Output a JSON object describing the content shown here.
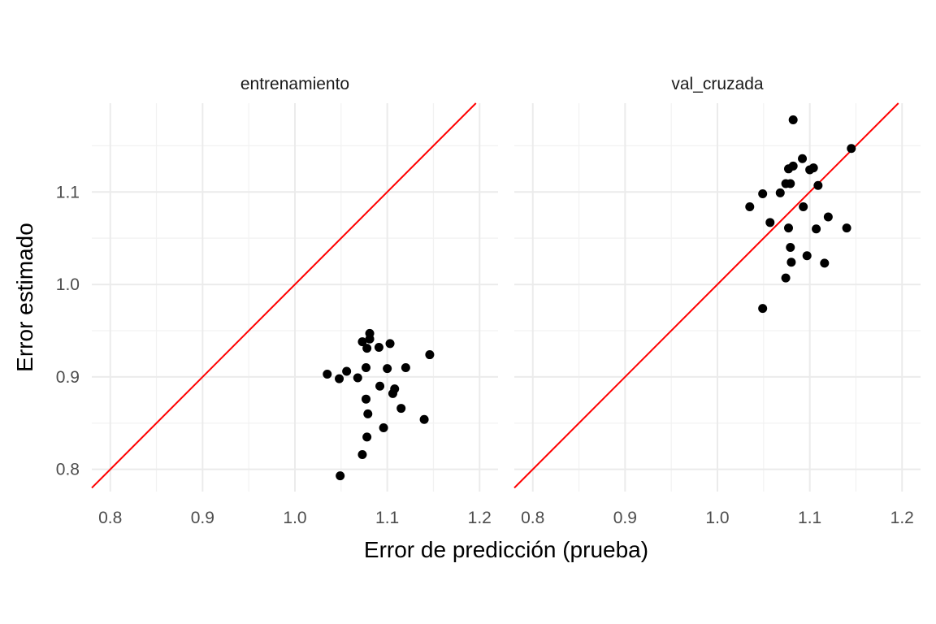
{
  "chart_data": {
    "type": "scatter",
    "xlabel": "Error de predicción (prueba)",
    "ylabel": "Error estimado",
    "xlim": [
      0.78,
      1.22
    ],
    "ylim": [
      0.776,
      1.196
    ],
    "x_ticks": [
      0.8,
      0.9,
      1.0,
      1.1,
      1.2
    ],
    "y_ticks": [
      0.8,
      0.9,
      1.0,
      1.1
    ],
    "x_tick_labels": [
      "0.8",
      "0.9",
      "1.0",
      "1.1",
      "1.2"
    ],
    "y_tick_labels": [
      "0.8",
      "0.9",
      "1.0",
      "1.1"
    ],
    "grid": true,
    "reference_line": {
      "slope": 1,
      "intercept": 0,
      "color": "#ff0000"
    },
    "point_color": "#000000",
    "panels": [
      {
        "title": "entrenamiento",
        "points": [
          [
            1.049,
            0.793
          ],
          [
            1.073,
            0.816
          ],
          [
            1.078,
            0.835
          ],
          [
            1.096,
            0.845
          ],
          [
            1.079,
            0.86
          ],
          [
            1.115,
            0.866
          ],
          [
            1.14,
            0.854
          ],
          [
            1.077,
            0.876
          ],
          [
            1.106,
            0.882
          ],
          [
            1.108,
            0.887
          ],
          [
            1.092,
            0.89
          ],
          [
            1.035,
            0.903
          ],
          [
            1.048,
            0.898
          ],
          [
            1.056,
            0.906
          ],
          [
            1.068,
            0.899
          ],
          [
            1.077,
            0.91
          ],
          [
            1.1,
            0.909
          ],
          [
            1.12,
            0.91
          ],
          [
            1.146,
            0.924
          ],
          [
            1.078,
            0.931
          ],
          [
            1.091,
            0.932
          ],
          [
            1.103,
            0.936
          ],
          [
            1.073,
            0.938
          ],
          [
            1.081,
            0.941
          ],
          [
            1.081,
            0.947
          ]
        ]
      },
      {
        "title": "val_cruzada",
        "points": [
          [
            1.049,
            0.974
          ],
          [
            1.074,
            1.007
          ],
          [
            1.08,
            1.024
          ],
          [
            1.097,
            1.031
          ],
          [
            1.116,
            1.023
          ],
          [
            1.079,
            1.04
          ],
          [
            1.077,
            1.061
          ],
          [
            1.107,
            1.06
          ],
          [
            1.14,
            1.061
          ],
          [
            1.12,
            1.073
          ],
          [
            1.057,
            1.067
          ],
          [
            1.035,
            1.084
          ],
          [
            1.093,
            1.084
          ],
          [
            1.049,
            1.098
          ],
          [
            1.068,
            1.099
          ],
          [
            1.074,
            1.109
          ],
          [
            1.079,
            1.109
          ],
          [
            1.109,
            1.107
          ],
          [
            1.077,
            1.125
          ],
          [
            1.082,
            1.128
          ],
          [
            1.1,
            1.124
          ],
          [
            1.104,
            1.126
          ],
          [
            1.092,
            1.136
          ],
          [
            1.145,
            1.147
          ],
          [
            1.082,
            1.178
          ]
        ]
      }
    ]
  }
}
